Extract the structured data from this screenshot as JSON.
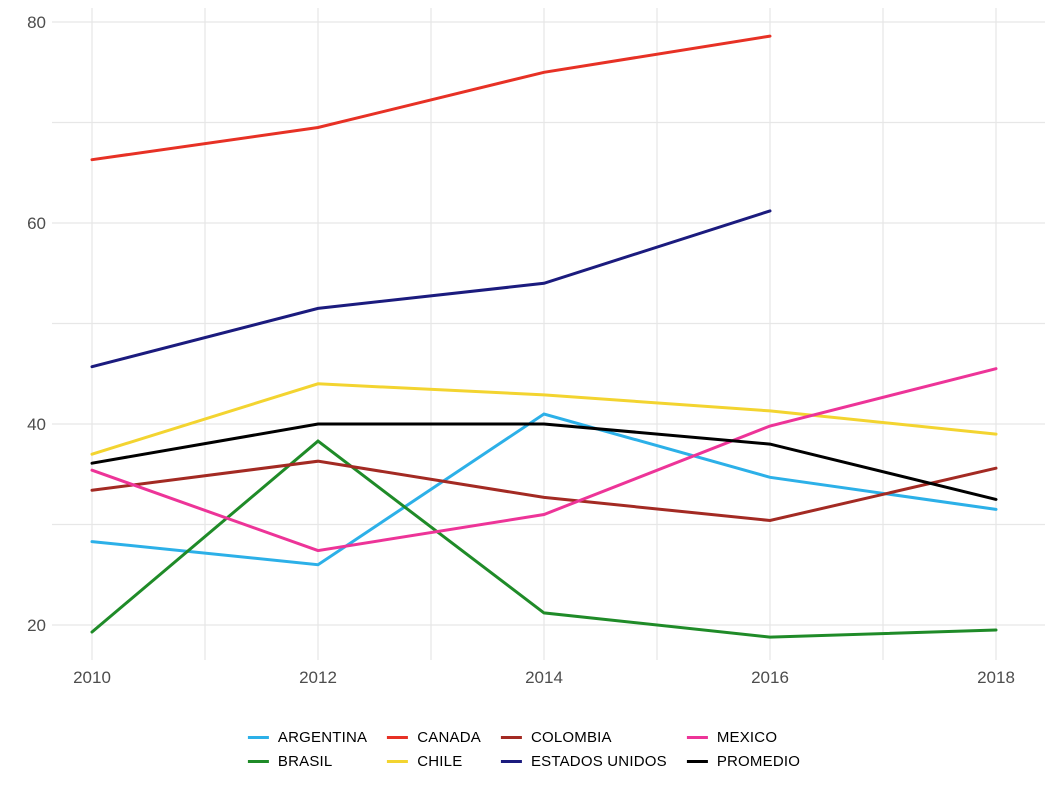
{
  "chart_data": {
    "type": "line",
    "title": "",
    "xlabel": "",
    "ylabel": "",
    "x": [
      2010,
      2012,
      2014,
      2016,
      2018
    ],
    "x_tick_labels": [
      "2010",
      "2012",
      "2014",
      "2016",
      "2018"
    ],
    "y_ticks": [
      20,
      40,
      60,
      80
    ],
    "y_tick_labels": [
      "20",
      "40",
      "60",
      "80"
    ],
    "ylim": [
      17,
      80
    ],
    "xlim": [
      2010,
      2018
    ],
    "y_grid_step": 10,
    "x_grid_step": 1,
    "grid_color": "#e7e7e7",
    "axis_text_color": "#4d4d4d",
    "background_color": "#ffffff",
    "series": [
      {
        "name": "ARGENTINA",
        "color": "#2cb0e8",
        "values": [
          28.3,
          26.0,
          41.0,
          34.7,
          31.5
        ]
      },
      {
        "name": "BRASIL",
        "color": "#1f8b28",
        "values": [
          19.3,
          38.3,
          21.2,
          18.8,
          19.5
        ]
      },
      {
        "name": "CANADA",
        "color": "#e73125",
        "values": [
          66.3,
          69.5,
          75.0,
          78.6,
          null
        ]
      },
      {
        "name": "CHILE",
        "color": "#f3d430",
        "values": [
          37.0,
          44.0,
          42.9,
          41.3,
          39.0
        ]
      },
      {
        "name": "COLOMBIA",
        "color": "#a32a23",
        "values": [
          33.4,
          36.3,
          32.7,
          30.4,
          35.6
        ]
      },
      {
        "name": "ESTADOS UNIDOS",
        "color": "#1b1b7e",
        "values": [
          45.7,
          51.5,
          54.0,
          61.2,
          null
        ]
      },
      {
        "name": "MEXICO",
        "color": "#ed3498",
        "values": [
          35.4,
          27.4,
          31.0,
          39.8,
          45.5
        ]
      },
      {
        "name": "PROMEDIO",
        "color": "#000000",
        "values": [
          36.1,
          40.0,
          40.0,
          38.0,
          32.5
        ]
      }
    ],
    "legend": {
      "position": "bottom-center",
      "columns": 4,
      "order": [
        "ARGENTINA",
        "CANADA",
        "COLOMBIA",
        "MEXICO",
        "BRASIL",
        "CHILE",
        "ESTADOS UNIDOS",
        "PROMEDIO"
      ]
    }
  }
}
